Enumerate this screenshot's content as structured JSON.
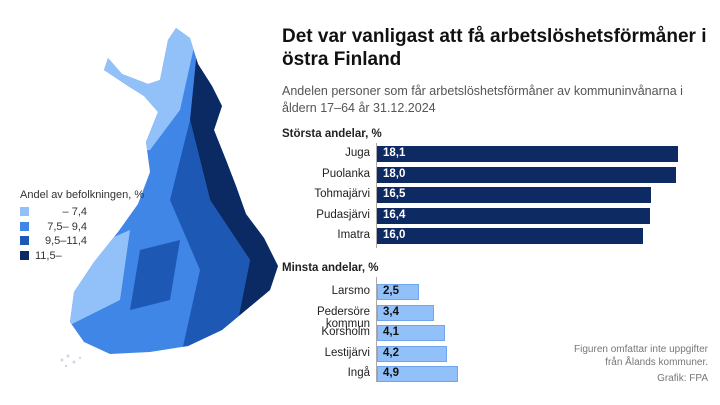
{
  "title": "Det var vanligast att få arbetslöshetsförmåner i östra Finland",
  "subtitle": "Andelen personer som får arbetslöshetsförmåner av kommuninvånarna i åldern 17–64 år 31.12.2024",
  "legend": {
    "title": "Andel av befolkningen, %",
    "items": [
      {
        "label": "   – 7,4",
        "color": "#92c0f8"
      },
      {
        "label": "7,5– 9,4",
        "color": "#3f86e6"
      },
      {
        "label": "9,5–11,4",
        "color": "#1d58b5"
      },
      {
        "label": "11,5–",
        "color": "#0b2a63"
      }
    ]
  },
  "note": "Figuren omfattar inte uppgifter från Ålands kommuner.",
  "credit": "Grafik: FPA",
  "chart_data": [
    {
      "type": "bar",
      "title": "Största andelar, %",
      "orientation": "horizontal",
      "categories": [
        "Juga",
        "Puolanka",
        "Tohmajärvi",
        "Pudasjärvi",
        "Imatra"
      ],
      "values": [
        18.1,
        18.0,
        16.5,
        16.4,
        16.0
      ],
      "value_labels": [
        "18,1",
        "18,0",
        "16,5",
        "16,4",
        "16,0"
      ],
      "color": "#0d2a63"
    },
    {
      "type": "bar",
      "title": "Minsta andelar, %",
      "orientation": "horizontal",
      "categories": [
        "Larsmo",
        "Pedersöre kommun",
        "Korsholm",
        "Lestijärvi",
        "Ingå"
      ],
      "values": [
        2.5,
        3.4,
        4.1,
        4.2,
        4.9
      ],
      "value_labels": [
        "2,5",
        "3,4",
        "4,1",
        "4,2",
        "4,9"
      ],
      "color": "#92c0f8"
    }
  ]
}
